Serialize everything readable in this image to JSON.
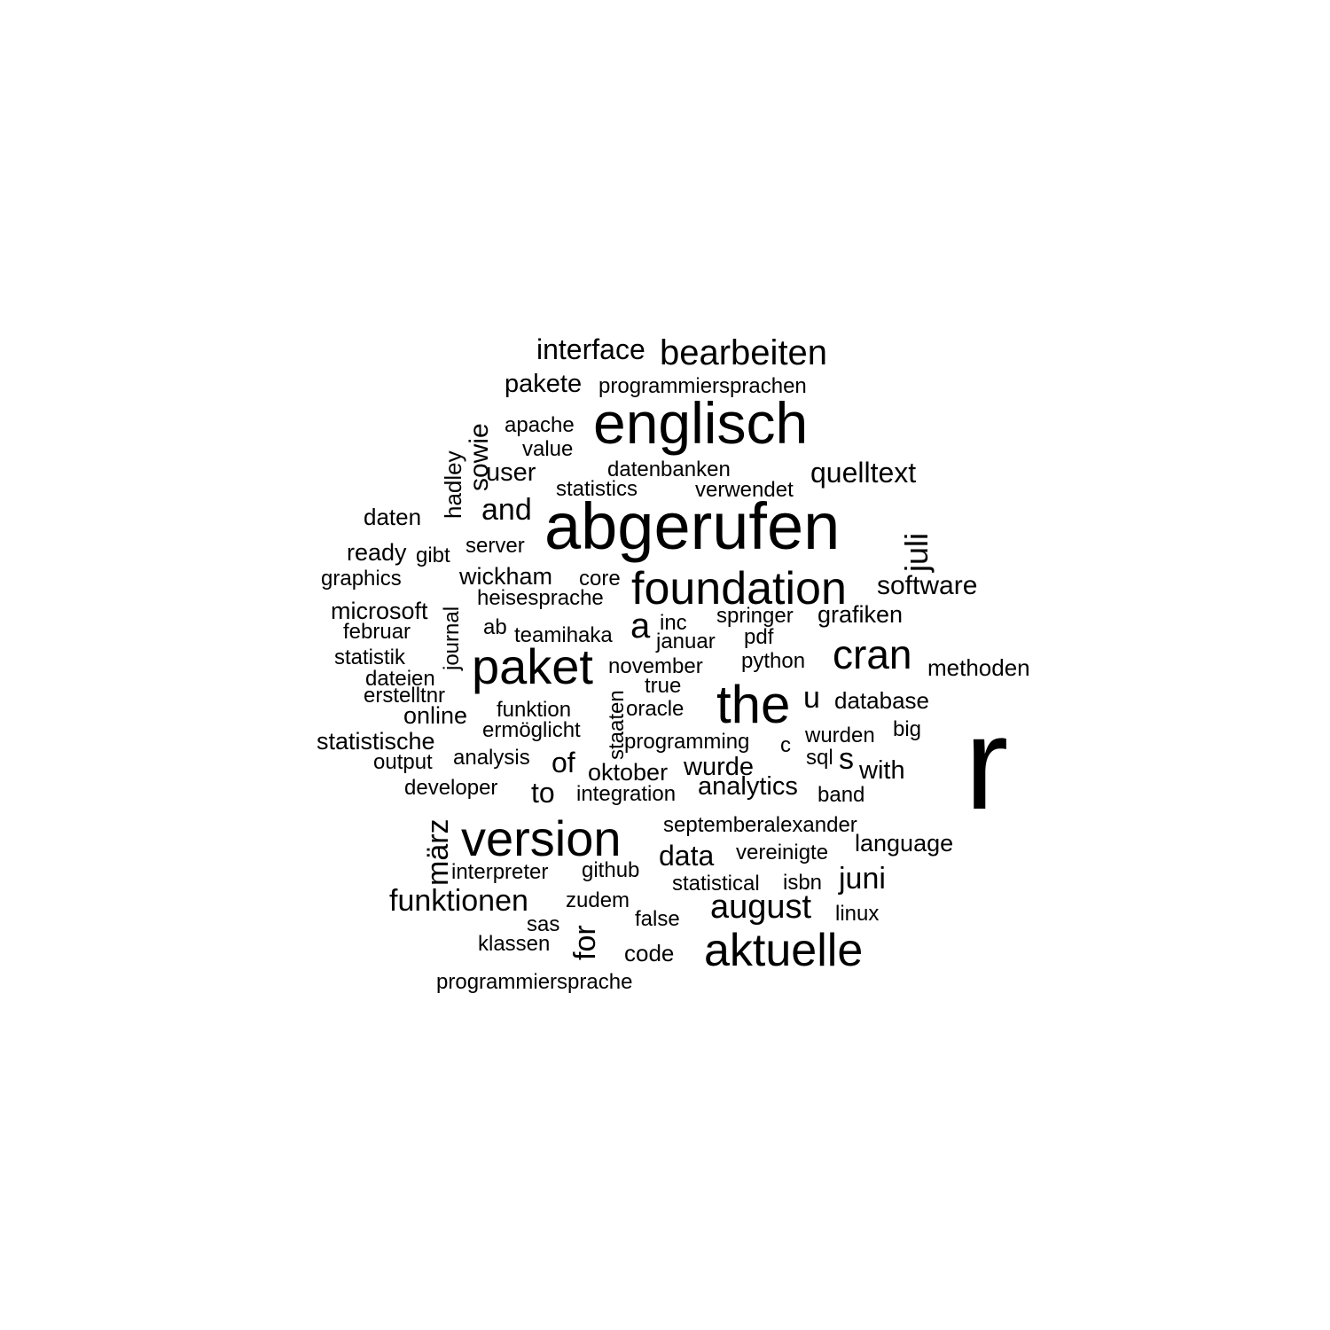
{
  "words": [
    "r",
    "abgerufen",
    "englisch",
    "foundation",
    "the",
    "paket",
    "version",
    "aktuelle",
    "bearbeiten",
    "cran",
    "august",
    "a",
    "quelltext",
    "software",
    "and",
    "juli",
    "funktionen",
    "data",
    "juni",
    "interface",
    "pakete",
    "user",
    "sowie",
    "märz",
    "for",
    "of",
    "to",
    "wurde",
    "analytics",
    "with",
    "s",
    "u",
    "wickham",
    "oktober",
    "grafiken",
    "methoden",
    "database",
    "language",
    "microsoft",
    "online",
    "statistische",
    "hadley",
    "journal",
    "staaten",
    "programmiersprachen",
    "apache",
    "value",
    "datenbanken",
    "statistics",
    "verwendet",
    "daten",
    "ready",
    "gibt",
    "server",
    "graphics",
    "core",
    "heisesprache",
    "inc",
    "springer",
    "februar",
    "ab",
    "teamihaka",
    "januar",
    "pdf",
    "statistik",
    "november",
    "python",
    "dateien",
    "true",
    "erstelltnr",
    "funktion",
    "oracle",
    "ermöglicht",
    "programming",
    "c",
    "wurden",
    "big",
    "output",
    "analysis",
    "sql",
    "developer",
    "integration",
    "band",
    "septemberalexander",
    "interpreter",
    "github",
    "vereinigte",
    "statistical",
    "isbn",
    "zudem",
    "linux",
    "sas",
    "false",
    "klassen",
    "code",
    "programmiersprache"
  ]
}
